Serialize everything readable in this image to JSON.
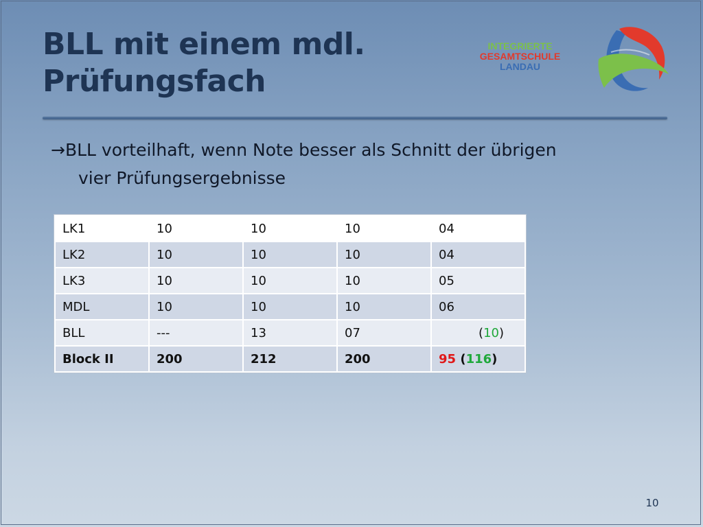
{
  "title": {
    "line1": "BLL mit einem mdl.",
    "line2": "Prüfungsfach"
  },
  "school": {
    "line1": "INTEGRIERTE",
    "line2": "GESAMTSCHULE",
    "line3": "LANDAU"
  },
  "bullet": {
    "arrow": "→",
    "line1": "BLL vorteilhaft, wenn Note besser als Schnitt der übrigen",
    "line2": "vier Prüfungsergebnisse"
  },
  "table": {
    "rows": [
      {
        "label": "LK1",
        "c1": " 10",
        "c2": " 10",
        "c3": " 10",
        "c4": "04"
      },
      {
        "label": "LK2",
        "c1": " 10",
        "c2": " 10",
        "c3": " 10",
        "c4": "04"
      },
      {
        "label": "LK3",
        "c1": " 10",
        "c2": " 10",
        "c3": " 10",
        "c4": "05"
      },
      {
        "label": "MDL",
        "c1": " 10",
        "c2": " 10",
        "c3": " 10",
        "c4": "06"
      },
      {
        "label": "BLL",
        "c1": "---",
        "c2": " 13",
        "c3": " 07",
        "c4_open": "(",
        "c4_green": "10",
        "c4_close": ")"
      },
      {
        "label": "Block II",
        "c1": "200",
        "c2": "212",
        "c3": "200",
        "c4_red": "95",
        "c4_open": " (",
        "c4_green": "116",
        "c4_close": ")"
      }
    ]
  },
  "colors": {
    "title": "#1e3453",
    "red": "#e01818",
    "green": "#1fa83a"
  },
  "page_number": "10"
}
